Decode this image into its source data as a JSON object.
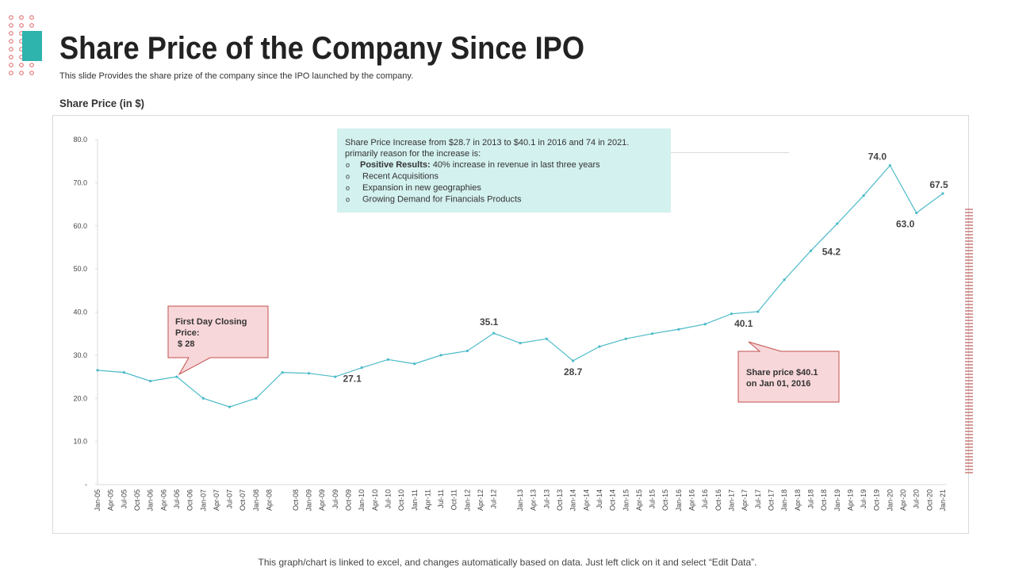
{
  "header": {
    "title": "Share Price of the Company Since IPO",
    "subtitle": "This slide Provides the share prize of the company since the IPO launched by the company."
  },
  "footer": "This graph/chart is linked to excel, and changes automatically based on data. Just left click on it and select “Edit Data”.",
  "chart_data": {
    "type": "line",
    "title": "Share Price (in $)",
    "color": "#4bbac8",
    "xticks": [
      "Jan-05",
      "Apr-05",
      "Jul-05",
      "Oct-05",
      "Jan-06",
      "Apr-06",
      "Jul-06",
      "Oct-06",
      "Jan-07",
      "Apr-07",
      "Jul-07",
      "Oct-07",
      "Jan-08",
      "Apr-08",
      null,
      "Oct-08",
      "Jan-09",
      "Apr-09",
      "Jul-09",
      "Oct-09",
      "Jan-10",
      "Apr-10",
      "Jul-10",
      "Oct-10",
      "Jan-11",
      "Apr-11",
      "Jul-11",
      "Oct-11",
      "Jan-12",
      "Apr-12",
      "Jul-12",
      null,
      "Jan-13",
      "Apr-13",
      "Jul-13",
      "Oct-13",
      "Jan-14",
      "Apr-14",
      "Jul-14",
      "Oct-14",
      "Jan-15",
      "Apr-15",
      "Jul-15",
      "Oct-15",
      "Jan-16",
      "Apr-16",
      "Jul-16",
      "Oct-16",
      "Jan-17",
      "Apr-17",
      "Jul-17",
      "Oct-17",
      "Jan-18",
      "Apr-18",
      "Jul-18",
      "Oct-18",
      "Jan-19",
      "Apr-19",
      "Jul-19",
      "Oct-19",
      "Jan-20",
      "Apr-20",
      "Jul-20",
      "Oct-20",
      "Jan-21"
    ],
    "values": [
      26.5,
      26,
      24,
      25,
      20,
      18,
      20,
      26,
      25.8,
      25,
      27.1,
      29,
      28,
      30,
      31,
      35.1,
      32.8,
      33.8,
      28.7,
      32,
      33.8,
      35,
      36,
      37.2,
      39.6,
      40.1,
      47.5,
      54.2,
      60.5,
      67,
      74,
      63,
      67.5
    ],
    "value_labels": [
      null,
      null,
      null,
      null,
      null,
      null,
      null,
      null,
      null,
      null,
      "27.1",
      null,
      null,
      null,
      null,
      "35.1",
      null,
      null,
      "28.7",
      null,
      null,
      null,
      null,
      null,
      null,
      "40.1",
      null,
      "54.2",
      null,
      null,
      "74.0",
      "63.0",
      "67.5"
    ],
    "ylim": [
      0,
      80
    ],
    "yticks": [
      {
        "value": 0,
        "label": "-"
      },
      {
        "value": 10,
        "label": "10.0"
      },
      {
        "value": 20,
        "label": "20.0"
      },
      {
        "value": 30,
        "label": "30.0"
      },
      {
        "value": 40,
        "label": "40.0"
      },
      {
        "value": 50,
        "label": "50.0"
      },
      {
        "value": 60,
        "label": "60.0"
      },
      {
        "value": 70,
        "label": "70.0"
      },
      {
        "value": 80,
        "label": "80.0"
      }
    ],
    "grid": false,
    "annotations": {
      "info_box": [
        "Share Price Increase from $28.7 in 2013 to $40.1 in 2016 and 74 in 2021.",
        "primarily  reason for the increase is:"
      ],
      "info_bullets": [
        {
          "bold": "Positive Results:",
          "text": " 40% increase in revenue in last three years"
        },
        {
          "text": "Recent Acquisitions"
        },
        {
          "text": "Expansion  in new geographies"
        },
        {
          "text": "Growing Demand for Financials  Products"
        }
      ],
      "bullet_marker": "o",
      "callout_first_day": [
        "First Day Closing",
        "Price:",
        " $ 28"
      ],
      "callout_share_price": [
        "Share price $40.1",
        "on Jan 01, 2016"
      ]
    }
  }
}
